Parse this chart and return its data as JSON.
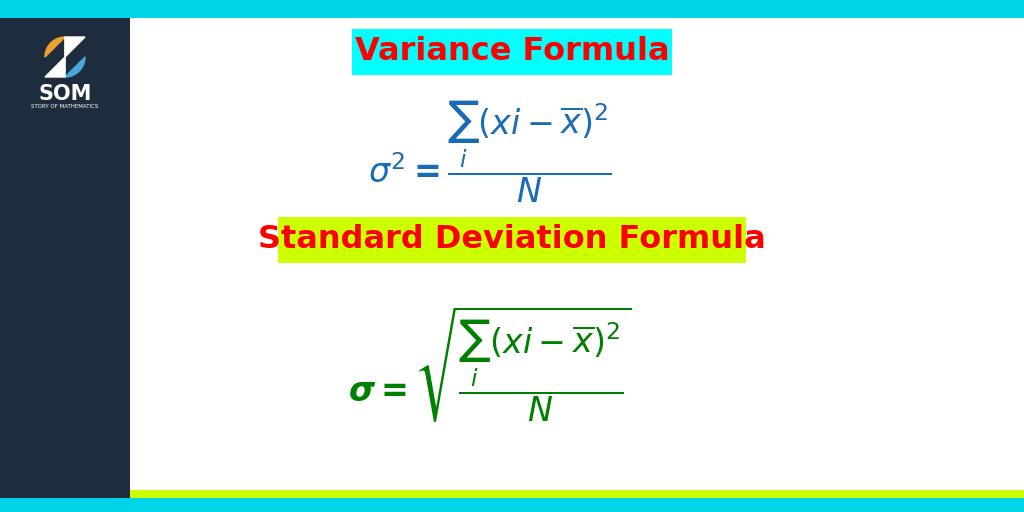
{
  "background_color": "#ffffff",
  "sidebar_color": "#1e2d3d",
  "cyan_stripe_color": "#00d4e8",
  "lime_stripe_color": "#ccff00",
  "title1_text": "Variance Formula",
  "title1_bg": "#00ffff",
  "title1_color": "#ff0000",
  "title2_text": "Standard Deviation Formula",
  "title2_bg": "#ccff00",
  "title2_color": "#ff0000",
  "formula_color": "#1a6bb5",
  "formula_sd_color": "#008000",
  "logo_orange": "#f0a030",
  "logo_blue": "#4aa8d8",
  "logo_text_color": "#ffffff"
}
